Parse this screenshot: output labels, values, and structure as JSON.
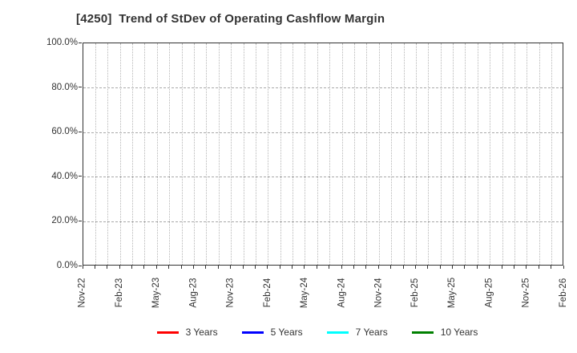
{
  "chart_data": {
    "type": "line",
    "title": "[4250]  Trend of StDev of Operating Cashflow Margin",
    "x_tick_labels": [
      "Nov-22",
      "Feb-23",
      "May-23",
      "Aug-23",
      "Nov-23",
      "Feb-24",
      "May-24",
      "Aug-24",
      "Nov-24",
      "Feb-25",
      "May-25",
      "Aug-25",
      "Nov-25",
      "Feb-26"
    ],
    "x_minor_divisions": 39,
    "x_labels_every_n_minor": 3,
    "y_tick_labels": [
      "0.0%",
      "20.0%",
      "40.0%",
      "60.0%",
      "80.0%",
      "100.0%"
    ],
    "ylim": [
      0,
      100
    ],
    "y_major_step": 20,
    "grid": "on",
    "legend_position": "bottom",
    "series": [
      {
        "name": "3 Years",
        "color": "#ff0000",
        "values": []
      },
      {
        "name": "5 Years",
        "color": "#0000ff",
        "values": []
      },
      {
        "name": "7 Years",
        "color": "#00ffff",
        "values": []
      },
      {
        "name": "10 Years",
        "color": "#008000",
        "values": []
      }
    ],
    "colors": {
      "axis": "#333333",
      "grid": "#b0b0b0",
      "text": "#333333",
      "background": "#ffffff"
    }
  }
}
